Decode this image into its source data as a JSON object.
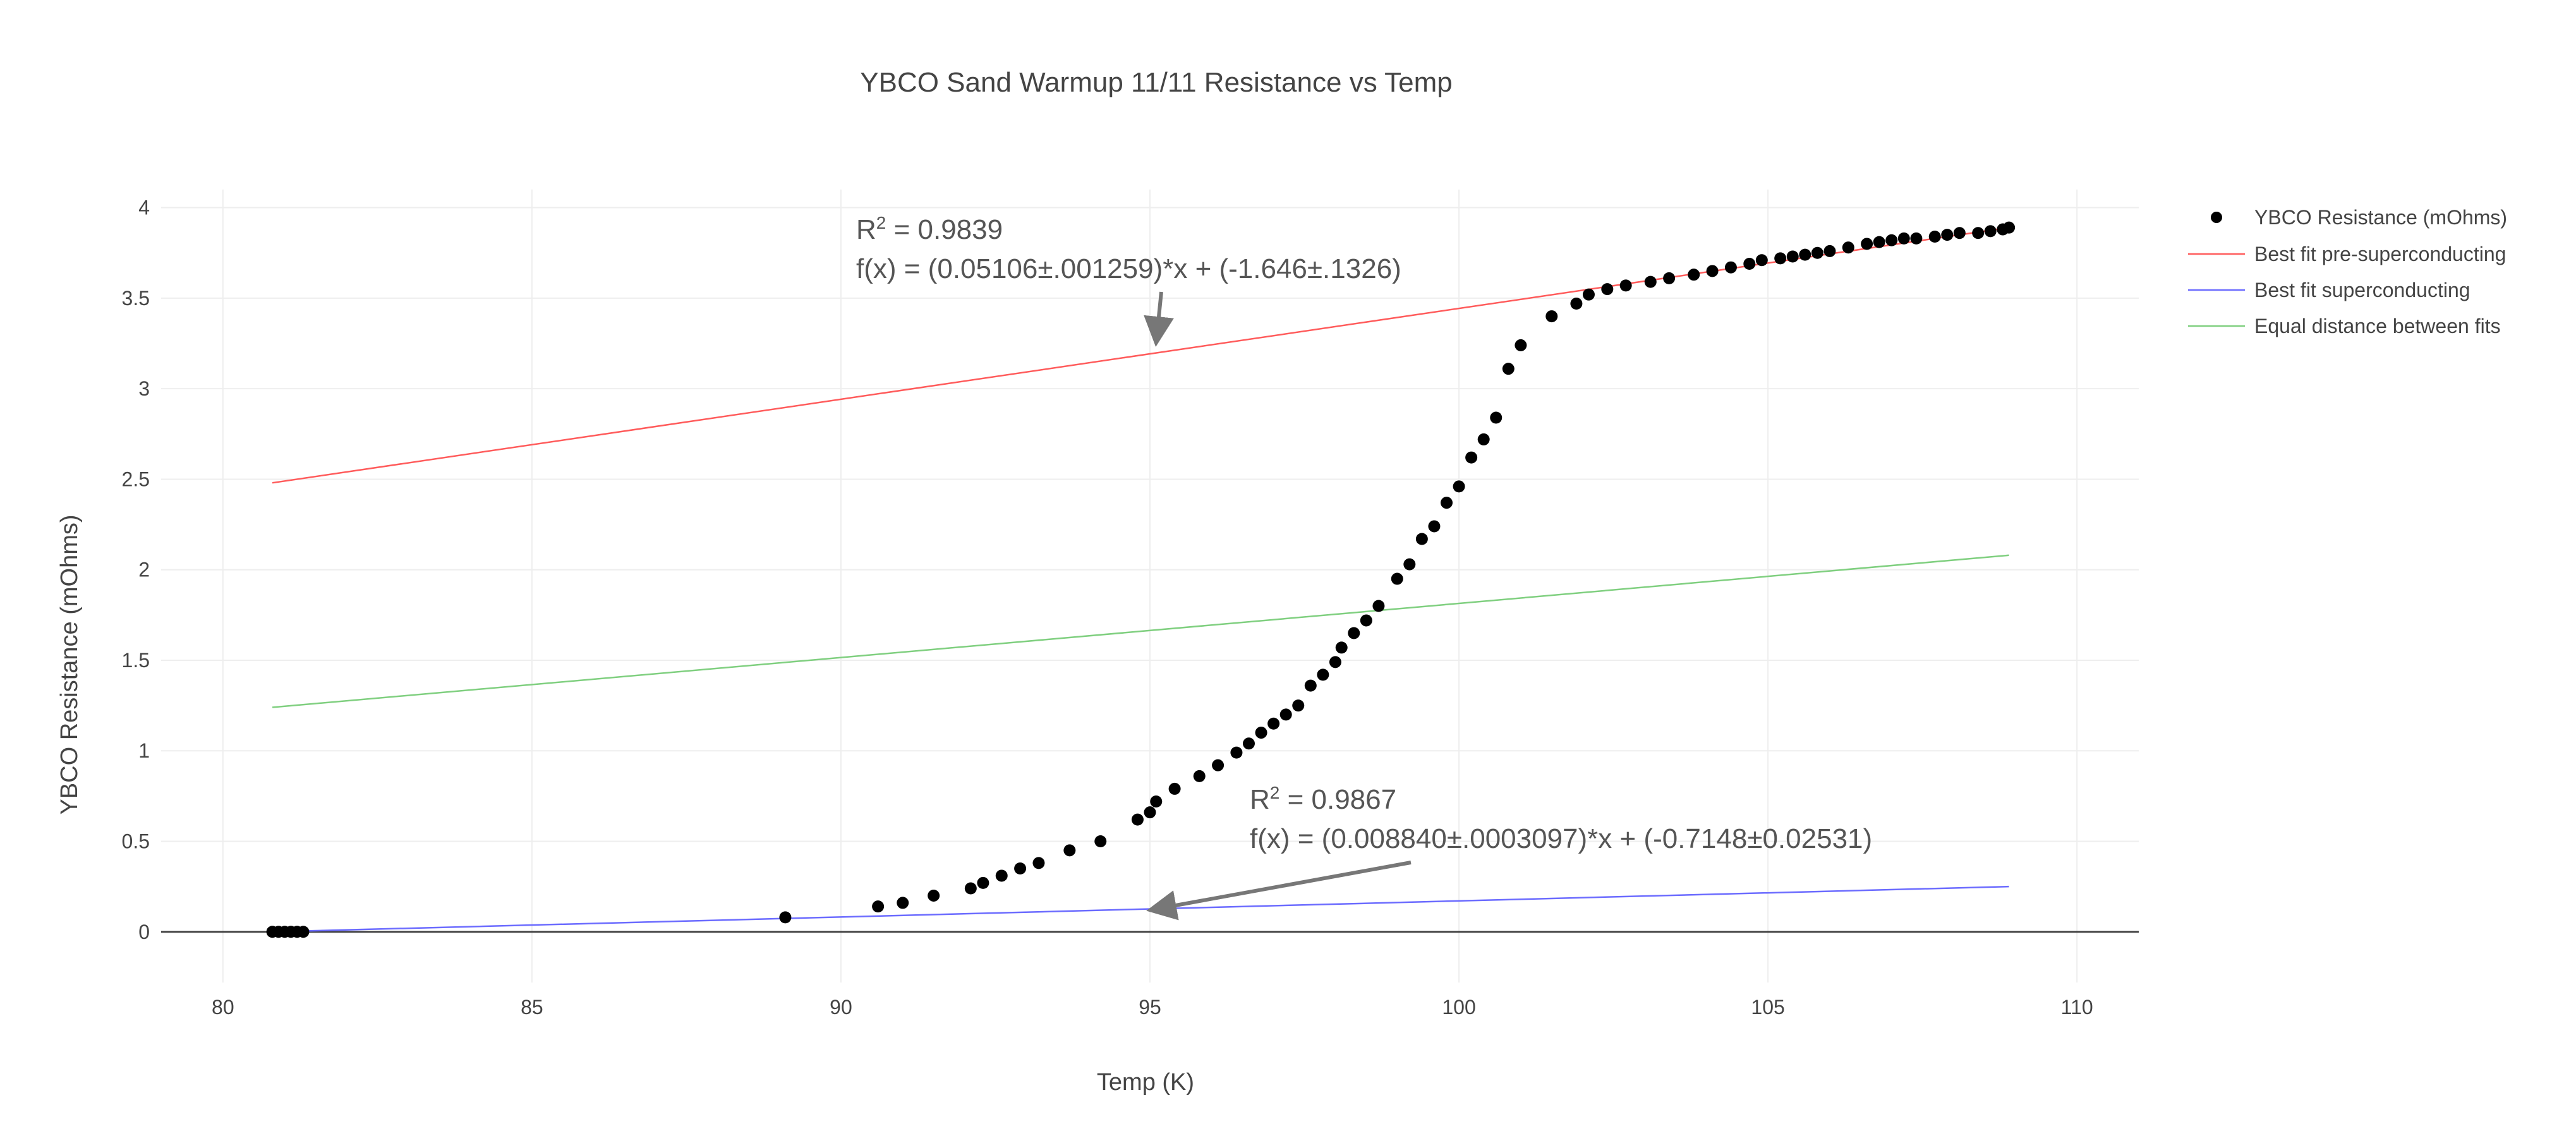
{
  "chart_data": {
    "type": "scatter",
    "title": "YBCO Sand Warmup 11/11 Resistance vs Temp",
    "xlabel": "Temp (K)",
    "ylabel": "YBCO Resistance (mOhms)",
    "xlim": [
      79,
      111
    ],
    "ylim": [
      -0.28,
      4.1
    ],
    "xticks": [
      80,
      85,
      90,
      95,
      100,
      105,
      110
    ],
    "yticks": [
      0,
      0.5,
      1,
      1.5,
      2,
      2.5,
      3,
      3.5,
      4
    ],
    "xtick_labels": [
      "80",
      "85",
      "90",
      "95",
      "100",
      "105",
      "110"
    ],
    "ytick_labels": [
      "0",
      "0.5",
      "1",
      "1.5",
      "2",
      "2.5",
      "3",
      "3.5",
      "4"
    ],
    "grid": true,
    "legend_position": "top-right",
    "series": [
      {
        "name": "YBCO Resistance (mOhms)",
        "mode": "markers",
        "color": "#000000",
        "x": [
          80.8,
          80.9,
          81.0,
          81.1,
          81.2,
          81.3,
          89.1,
          90.6,
          91.0,
          91.5,
          92.1,
          92.3,
          92.6,
          92.9,
          93.2,
          93.7,
          94.2,
          94.8,
          95.0,
          95.1,
          95.4,
          95.8,
          96.1,
          96.4,
          96.6,
          96.8,
          97.0,
          97.2,
          97.4,
          97.6,
          97.8,
          98.0,
          98.1,
          98.3,
          98.5,
          98.7,
          99.0,
          99.2,
          99.4,
          99.6,
          99.8,
          100.0,
          100.2,
          100.4,
          100.6,
          100.8,
          101.0,
          101.5,
          101.9,
          102.1,
          102.4,
          102.7,
          103.1,
          103.4,
          103.8,
          104.1,
          104.4,
          104.7,
          104.9,
          105.2,
          105.4,
          105.6,
          105.8,
          106.0,
          106.3,
          106.6,
          106.8,
          107.0,
          107.2,
          107.4,
          107.7,
          107.9,
          108.1,
          108.4,
          108.6,
          108.8,
          108.9
        ],
        "y": [
          0.0,
          0.0,
          0.0,
          0.0,
          0.0,
          0.0,
          0.08,
          0.14,
          0.16,
          0.2,
          0.24,
          0.27,
          0.31,
          0.35,
          0.38,
          0.45,
          0.5,
          0.62,
          0.66,
          0.72,
          0.79,
          0.86,
          0.92,
          0.99,
          1.04,
          1.1,
          1.15,
          1.2,
          1.25,
          1.36,
          1.42,
          1.49,
          1.57,
          1.65,
          1.72,
          1.8,
          1.95,
          2.03,
          2.17,
          2.24,
          2.37,
          2.46,
          2.62,
          2.72,
          2.84,
          3.11,
          3.24,
          3.4,
          3.47,
          3.52,
          3.55,
          3.57,
          3.59,
          3.61,
          3.63,
          3.65,
          3.67,
          3.69,
          3.71,
          3.72,
          3.73,
          3.74,
          3.75,
          3.76,
          3.78,
          3.8,
          3.81,
          3.82,
          3.83,
          3.83,
          3.84,
          3.85,
          3.86,
          3.86,
          3.87,
          3.88,
          3.89
        ]
      },
      {
        "name": "Best fit pre-superconducting",
        "mode": "lines",
        "color": "#ff5b5b",
        "x": [
          80.8,
          108.9
        ],
        "y": [
          2.48,
          3.89
        ]
      },
      {
        "name": "Best fit superconducting",
        "mode": "lines",
        "color": "#6b6bff",
        "x": [
          80.8,
          108.9
        ],
        "y": [
          -0.0,
          0.25
        ]
      },
      {
        "name": "Equal distance between fits",
        "mode": "lines",
        "color": "#7fcf7f",
        "x": [
          80.8,
          108.9
        ],
        "y": [
          1.24,
          2.08
        ]
      }
    ],
    "annotations": [
      {
        "r2_prefix": "R",
        "r2_sup": "2",
        "r2_value": " = 0.9839",
        "formula": "f(x) = (0.05106±.001259)*x + (-1.646±.1326)",
        "arrow_to": [
          95.1,
          3.21
        ]
      },
      {
        "r2_prefix": "R",
        "r2_sup": "2",
        "r2_value": " = 0.9867",
        "formula": "f(x) = (0.008840±.0003097)*x + (-0.7148±0.02531)",
        "arrow_to": [
          95.0,
          0.12
        ]
      }
    ]
  }
}
